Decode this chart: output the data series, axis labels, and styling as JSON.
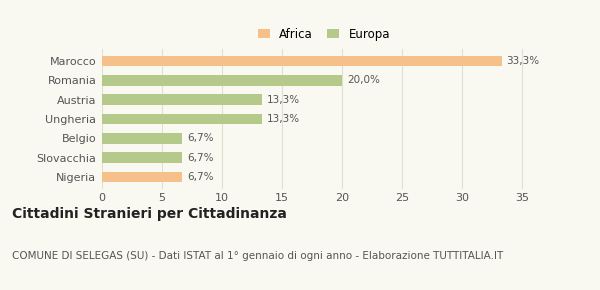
{
  "categories": [
    "Marocco",
    "Romania",
    "Austria",
    "Ungheria",
    "Belgio",
    "Slovacchia",
    "Nigeria"
  ],
  "values": [
    33.3,
    20.0,
    13.3,
    13.3,
    6.7,
    6.7,
    6.7
  ],
  "labels": [
    "33,3%",
    "20,0%",
    "13,3%",
    "13,3%",
    "6,7%",
    "6,7%",
    "6,7%"
  ],
  "colors": [
    "#f5c08a",
    "#b5ca8a",
    "#b5ca8a",
    "#b5ca8a",
    "#b5ca8a",
    "#b5ca8a",
    "#f5c08a"
  ],
  "legend_labels": [
    "Africa",
    "Europa"
  ],
  "legend_colors": [
    "#f5c08a",
    "#b5ca8a"
  ],
  "xlim": [
    0,
    37
  ],
  "xticks": [
    0,
    5,
    10,
    15,
    20,
    25,
    30,
    35
  ],
  "title": "Cittadini Stranieri per Cittadinanza",
  "subtitle": "COMUNE DI SELEGAS (SU) - Dati ISTAT al 1° gennaio di ogni anno - Elaborazione TUTTITALIA.IT",
  "bg_color": "#f9f9f2",
  "grid_color": "#e0e0d0",
  "title_fontsize": 10,
  "subtitle_fontsize": 7.5,
  "bar_label_fontsize": 7.5,
  "tick_fontsize": 8,
  "bar_height": 0.55
}
